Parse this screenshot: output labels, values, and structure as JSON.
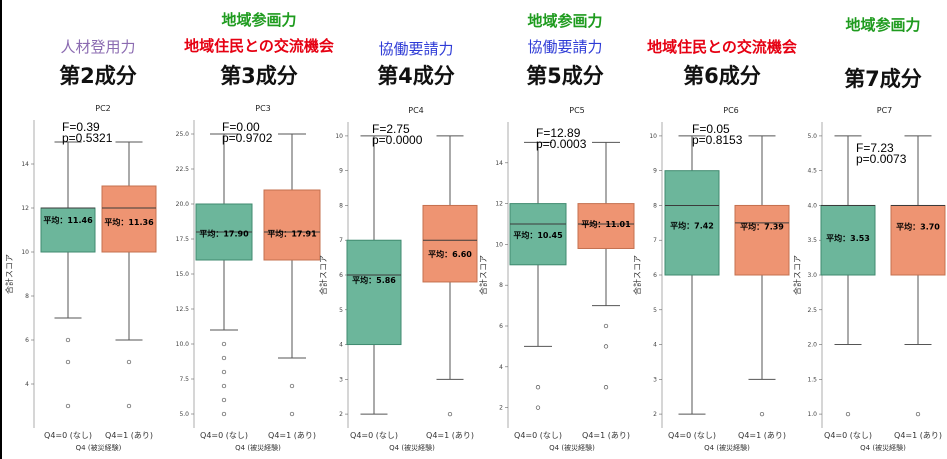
{
  "colors": {
    "green": "#6CB69B",
    "orange": "#EE9472",
    "purple": "#8B6BB1",
    "red": "#E60012",
    "blue": "#2E3BD6",
    "darkgreen": "#1E9B1E"
  },
  "headers": [
    {
      "lines": [
        {
          "text": "人材登用力",
          "color": "#8B6BB1"
        }
      ],
      "component": "第2成分"
    },
    {
      "lines": [
        {
          "text": "地域参画力",
          "color": "#1E9B1E"
        },
        {
          "text": "地域住民との交流機会",
          "color": "#E60012"
        }
      ],
      "component": "第3成分"
    },
    {
      "lines": [
        {
          "text": "協働要請力",
          "color": "#2E3BD6"
        }
      ],
      "component": "第4成分"
    },
    {
      "lines": [
        {
          "text": "地域参画力",
          "color": "#1E9B1E"
        },
        {
          "text": "協働要請力",
          "color": "#2E3BD6"
        }
      ],
      "component": "第5成分"
    },
    {
      "lines": [
        {
          "text": "地域住民との交流機会",
          "color": "#E60012"
        }
      ],
      "component": "第6成分"
    },
    {
      "lines": [
        {
          "text": "地域参画力",
          "color": "#1E9B1E"
        }
      ],
      "component": "第7成分"
    }
  ],
  "chart_data": [
    {
      "type": "box",
      "title": "PC2",
      "xlabel": "Q4 (被災経験)",
      "ylabel": "合計スコア",
      "categories": [
        "Q4=0 (なし)",
        "Q4=1 (あり)"
      ],
      "ylim": [
        2,
        16
      ],
      "yticks": [
        4,
        6,
        8,
        10,
        12,
        14
      ],
      "stat_f": "F=0.39",
      "stat_p": "p=0.5321",
      "boxes": [
        {
          "whisker_low": 7,
          "q1": 10,
          "median": 12,
          "q3": 12,
          "whisker_high": 15,
          "mean": 11.46,
          "mean_label": "平均：11.46",
          "outliers": [
            3,
            5,
            6
          ]
        },
        {
          "whisker_low": 6,
          "q1": 10,
          "median": 12,
          "q3": 13,
          "whisker_high": 15,
          "mean": 11.36,
          "mean_label": "平均：11.36",
          "outliers": [
            3,
            5
          ]
        }
      ]
    },
    {
      "type": "box",
      "title": "PC3",
      "xlabel": "Q4 (被災経験)",
      "ylabel": "",
      "categories": [
        "Q4=0 (なし)",
        "Q4=1 (あり)"
      ],
      "ylim": [
        4,
        26
      ],
      "yticks": [
        5.0,
        7.5,
        10.0,
        12.5,
        15.0,
        17.5,
        20.0,
        22.5,
        25.0
      ],
      "stat_f": "F=0.00",
      "stat_p": "p=0.9702",
      "boxes": [
        {
          "whisker_low": 11,
          "q1": 16,
          "median": 18,
          "q3": 20,
          "whisker_high": 25,
          "mean": 17.9,
          "mean_label": "平均：17.90",
          "outliers": [
            5,
            6,
            7,
            8,
            9,
            10
          ]
        },
        {
          "whisker_low": 9,
          "q1": 16,
          "median": 18,
          "q3": 21,
          "whisker_high": 25,
          "mean": 17.91,
          "mean_label": "平均：17.91",
          "outliers": [
            5,
            7
          ]
        }
      ]
    },
    {
      "type": "box",
      "title": "PC4",
      "xlabel": "Q4 (被災経験)",
      "ylabel": "合計スコア",
      "categories": [
        "Q4=0 (なし)",
        "Q4=1 (あり)"
      ],
      "ylim": [
        1.6,
        10.4
      ],
      "yticks": [
        2,
        3,
        4,
        5,
        6,
        7,
        8,
        9,
        10
      ],
      "stat_f": "F=2.75",
      "stat_p": "p=0.0000",
      "boxes": [
        {
          "whisker_low": 2,
          "q1": 4,
          "median": 6,
          "q3": 7,
          "whisker_high": 10,
          "mean": 5.86,
          "mean_label": "平均：5.86",
          "outliers": []
        },
        {
          "whisker_low": 3,
          "q1": 5.8,
          "median": 7,
          "q3": 8,
          "whisker_high": 10,
          "mean": 6.6,
          "mean_label": "平均：6.60",
          "outliers": [
            2
          ]
        }
      ]
    },
    {
      "type": "box",
      "title": "PC5",
      "xlabel": "Q4 (被災経験)",
      "ylabel": "合計スコア",
      "categories": [
        "Q4=0 (なし)",
        "Q4=1 (あり)"
      ],
      "ylim": [
        1,
        16
      ],
      "yticks": [
        2,
        4,
        6,
        8,
        10,
        12,
        14
      ],
      "stat_f": "F=12.89",
      "stat_p": "p=0.0003",
      "boxes": [
        {
          "whisker_low": 5,
          "q1": 9,
          "median": 11,
          "q3": 12,
          "whisker_high": 15,
          "mean": 10.45,
          "mean_label": "平均：10.45",
          "outliers": [
            2,
            3
          ]
        },
        {
          "whisker_low": 7,
          "q1": 9.8,
          "median": 11,
          "q3": 12,
          "whisker_high": 15,
          "mean": 11.01,
          "mean_label": "平均：11.01",
          "outliers": [
            3,
            5,
            6
          ]
        }
      ]
    },
    {
      "type": "box",
      "title": "PC6",
      "xlabel": "Q4 (被災経験)",
      "ylabel": "合計スコア",
      "categories": [
        "Q4=0 (なし)",
        "Q4=1 (あり)"
      ],
      "ylim": [
        1.6,
        10.4
      ],
      "yticks": [
        2,
        3,
        4,
        5,
        6,
        7,
        8,
        9,
        10
      ],
      "stat_f": "F=0.05",
      "stat_p": "p=0.8153",
      "boxes": [
        {
          "whisker_low": 2,
          "q1": 6,
          "median": 8,
          "q3": 9,
          "whisker_high": 10,
          "mean": 7.42,
          "mean_label": "平均：7.42",
          "outliers": []
        },
        {
          "whisker_low": 3,
          "q1": 6,
          "median": 7.5,
          "q3": 8,
          "whisker_high": 10,
          "mean": 7.39,
          "mean_label": "平均：7.39",
          "outliers": [
            2
          ]
        }
      ]
    },
    {
      "type": "box",
      "title": "PC7",
      "xlabel": "Q4 (被災経験)",
      "ylabel": "合計スコア",
      "categories": [
        "Q4=0 (なし)",
        "Q4=1 (あり)"
      ],
      "ylim": [
        0.8,
        5.2
      ],
      "yticks": [
        1.0,
        1.5,
        2.0,
        2.5,
        3.0,
        3.5,
        4.0,
        4.5,
        5.0
      ],
      "stat_f": "F=7.23",
      "stat_p": "p=0.0073",
      "boxes": [
        {
          "whisker_low": 2,
          "q1": 3,
          "median": 4,
          "q3": 4,
          "whisker_high": 5,
          "mean": 3.53,
          "mean_label": "平均：3.53",
          "outliers": [
            1
          ]
        },
        {
          "whisker_low": 2,
          "q1": 3,
          "median": 4,
          "q3": 4,
          "whisker_high": 5,
          "mean": 3.7,
          "mean_label": "平均：3.70",
          "outliers": [
            1
          ]
        }
      ]
    }
  ]
}
